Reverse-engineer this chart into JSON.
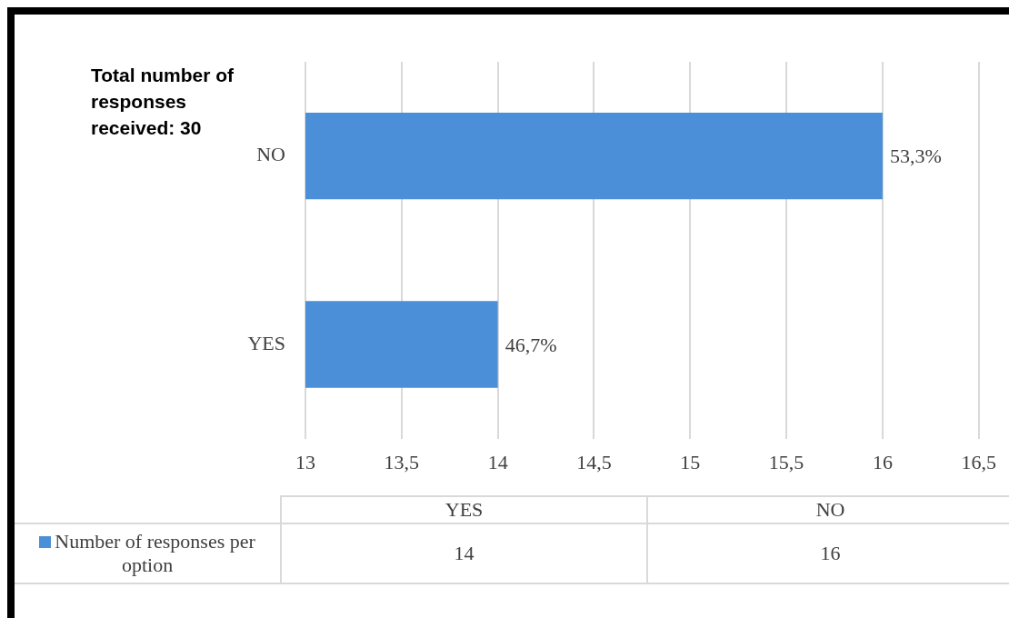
{
  "chart_data": {
    "type": "bar",
    "orientation": "horizontal",
    "categories": [
      "NO",
      "YES"
    ],
    "series": [
      {
        "name": "Number of responses per option",
        "color": "#4a8fd8",
        "values": [
          16,
          14
        ]
      }
    ],
    "xlim": [
      13,
      16.5
    ],
    "xticks": [
      13,
      {
        "value": 13.5,
        "label": "13,5"
      },
      14,
      {
        "value": 14.5,
        "label": "14,5"
      },
      15,
      {
        "value": 15.5,
        "label": "15,5"
      },
      16,
      {
        "value": 16.5,
        "label": "16,5"
      }
    ],
    "grid": "x",
    "legend": "bottom",
    "annotations": [
      "Total number of responses received: 30",
      "14",
      "16",
      {
        "text": "53,3%",
        "x": 16,
        "y": "NO"
      },
      {
        "text": "46,7%",
        "x": 14,
        "y": "YES"
      }
    ]
  }
}
